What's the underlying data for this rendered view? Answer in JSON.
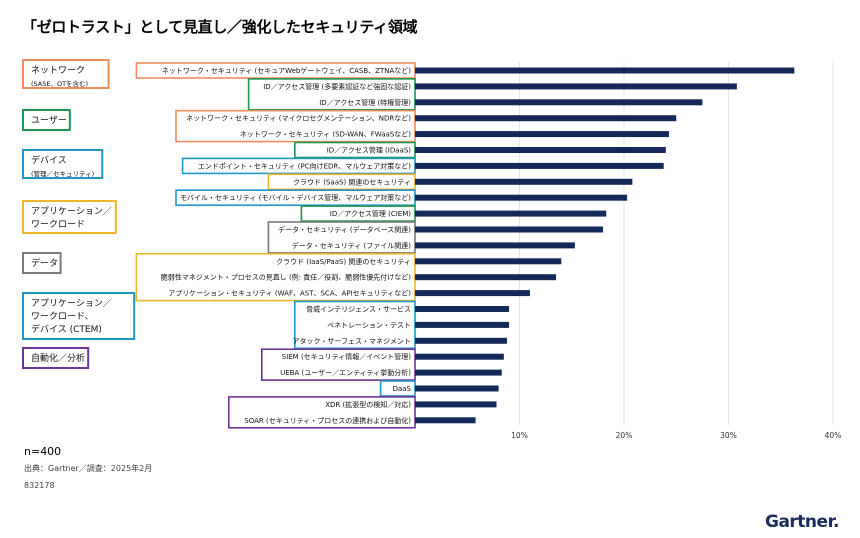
{
  "title": "「ゼロトラスト」として見直し／強化したセキュリティ領域",
  "chart_data": {
    "type": "bar",
    "orientation": "horizontal",
    "title": "「ゼロトラスト」として見直し／強化したセキュリティ領域",
    "categories": [
      "ネットワーク・セキュリティ (セキュアWebゲートウェイ、CASB、ZTNAなど)",
      "ID／アクセス管理 (多要素認証など強固な認証)",
      "ID／アクセス管理 (特権管理)",
      "ネットワーク・セキュリティ (マイクロセグメンテーション、NDRなど)",
      "ネットワーク・セキュリティ (SD-WAN、FWaaSなど)",
      "ID／アクセス管理 (IDaaS)",
      "エンドポイント・セキュリティ (PC向けEDR、マルウェア対策など)",
      "クラウド (SaaS) 関連のセキュリティ",
      "モバイル・セキュリティ (モバイル・デバイス管理、マルウェア対策など)",
      "ID／アクセス管理 (CIEM)",
      "データ・セキュリティ (データベース関連)",
      "データ・セキュリティ (ファイル関連)",
      "クラウド (IaaS/PaaS) 関連のセキュリティ",
      "脆弱性マネジメント・プロセスの見直し (例: 責任／役割、脆弱性優先付けなど)",
      "アプリケーション・セキュリティ (WAF、AST、SCA、APIセキュリティなど)",
      "脅威インテリジェンス・サービス",
      "ペネトレーション・テスト",
      "アタック・サーフェス・マネジメント",
      "SIEM (セキュリティ情報／イベント管理)",
      "UEBA (ユーザー／エンティティ挙動分析)",
      "DaaS",
      "XDR (拡張型の検知／対応)",
      "SOAR (セキュリティ・プロセスの連携および自動化)"
    ],
    "values": [
      36.3,
      30.8,
      27.5,
      25.0,
      24.3,
      24.0,
      23.8,
      20.8,
      20.3,
      18.3,
      18.0,
      15.3,
      14.0,
      13.5,
      11.0,
      9.0,
      9.0,
      8.8,
      8.5,
      8.3,
      8.0,
      7.8,
      5.8
    ],
    "category_groups": [
      "ネットワーク",
      "ID",
      "ID",
      "ネットワーク",
      "ネットワーク",
      "ユーザー",
      "デバイス",
      "アプリ",
      "デバイス",
      "ユーザー",
      "データ",
      "データ",
      "アプリ",
      "アプリ",
      "アプリ",
      "CTEM",
      "CTEM",
      "CTEM",
      "自動化",
      "自動化",
      "デバイス",
      "自動化",
      "自動化"
    ],
    "xticks": [
      "10%",
      "20%",
      "30%",
      "40%"
    ],
    "xtick_values": [
      10,
      20,
      30,
      40
    ],
    "xlim": [
      0,
      40
    ],
    "bar_color": "#14285a",
    "legend": [
      {
        "key": "ネットワーク",
        "line1": "ネットワーク",
        "line2": "(SASE、OTを含む)",
        "line3": "",
        "color": "#f08c5a"
      },
      {
        "key": "ユーザー",
        "line1": "ユーザー",
        "line2": "",
        "line3": "",
        "color": "#1e9650"
      },
      {
        "key": "デバイス",
        "line1": "デバイス",
        "line2": "(管理／セキュリティ)",
        "line3": "",
        "color": "#1e96c8"
      },
      {
        "key": "アプリ",
        "line1": "アプリケーション／",
        "line2": "ワークロード",
        "line3": "",
        "color": "#f0b428"
      },
      {
        "key": "データ",
        "line1": "データ",
        "line2": "",
        "line3": "",
        "color": "#7a7a7a"
      },
      {
        "key": "CTEM",
        "line1": "アプリケーション／",
        "line2": "ワークロード、",
        "line3": "デバイス (CTEM)",
        "color": "#1e96c8"
      },
      {
        "key": "自動化",
        "line1": "自動化／分析",
        "line2": "",
        "line3": "",
        "color": "#6e329b"
      }
    ],
    "group_colors": {
      "ID": "#1e9650"
    }
  },
  "footer": {
    "n": "n=400",
    "source": "出典：Gartner／調査：2025年2月",
    "id": "832178"
  },
  "logo": {
    "text": "Gartner",
    "dot": "."
  }
}
